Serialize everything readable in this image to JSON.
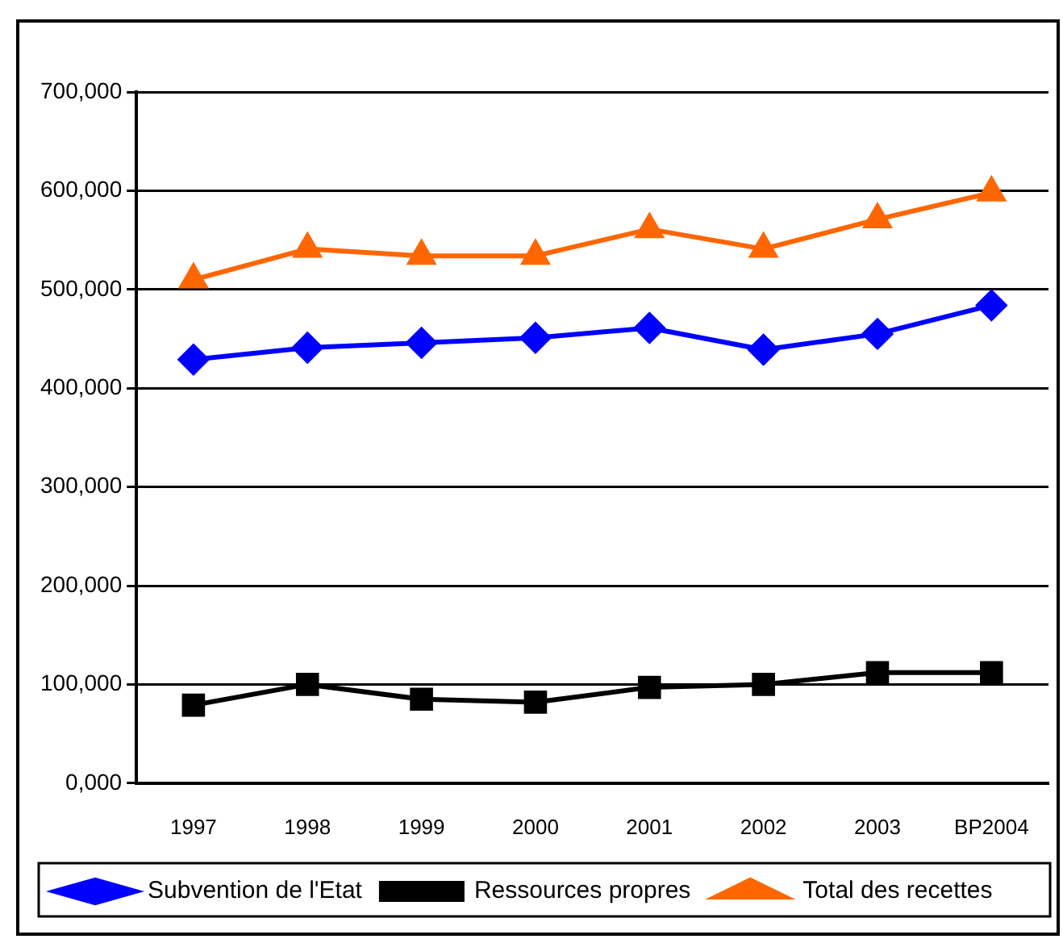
{
  "chart_data": {
    "type": "line",
    "categories": [
      "1997",
      "1998",
      "1999",
      "2000",
      "2001",
      "2002",
      "2003",
      "BP2004"
    ],
    "series": [
      {
        "name": "Subvention de l'Etat",
        "color": "#0000ff",
        "marker": "diamond",
        "values": [
          429000,
          441000,
          446000,
          451000,
          461000,
          439000,
          455000,
          484000
        ]
      },
      {
        "name": "Ressources propres",
        "color": "#000000",
        "marker": "square",
        "values": [
          79000,
          100000,
          85000,
          82000,
          97000,
          100000,
          112000,
          112000
        ]
      },
      {
        "name": "Total des recettes",
        "color": "#ff6600",
        "marker": "triangle",
        "values": [
          510000,
          541000,
          534000,
          534000,
          561000,
          541000,
          571000,
          598000
        ]
      }
    ],
    "ylim": [
      0,
      700000
    ],
    "yticks": [
      {
        "value": 0,
        "label": "0,000"
      },
      {
        "value": 100000,
        "label": "100,000"
      },
      {
        "value": 200000,
        "label": "200,000"
      },
      {
        "value": 300000,
        "label": "300,000"
      },
      {
        "value": 400000,
        "label": "400,000"
      },
      {
        "value": 500000,
        "label": "500,000"
      },
      {
        "value": 600000,
        "label": "600,000"
      },
      {
        "value": 700000,
        "label": "700,000"
      }
    ],
    "grid": "y",
    "legend": "bottom"
  }
}
